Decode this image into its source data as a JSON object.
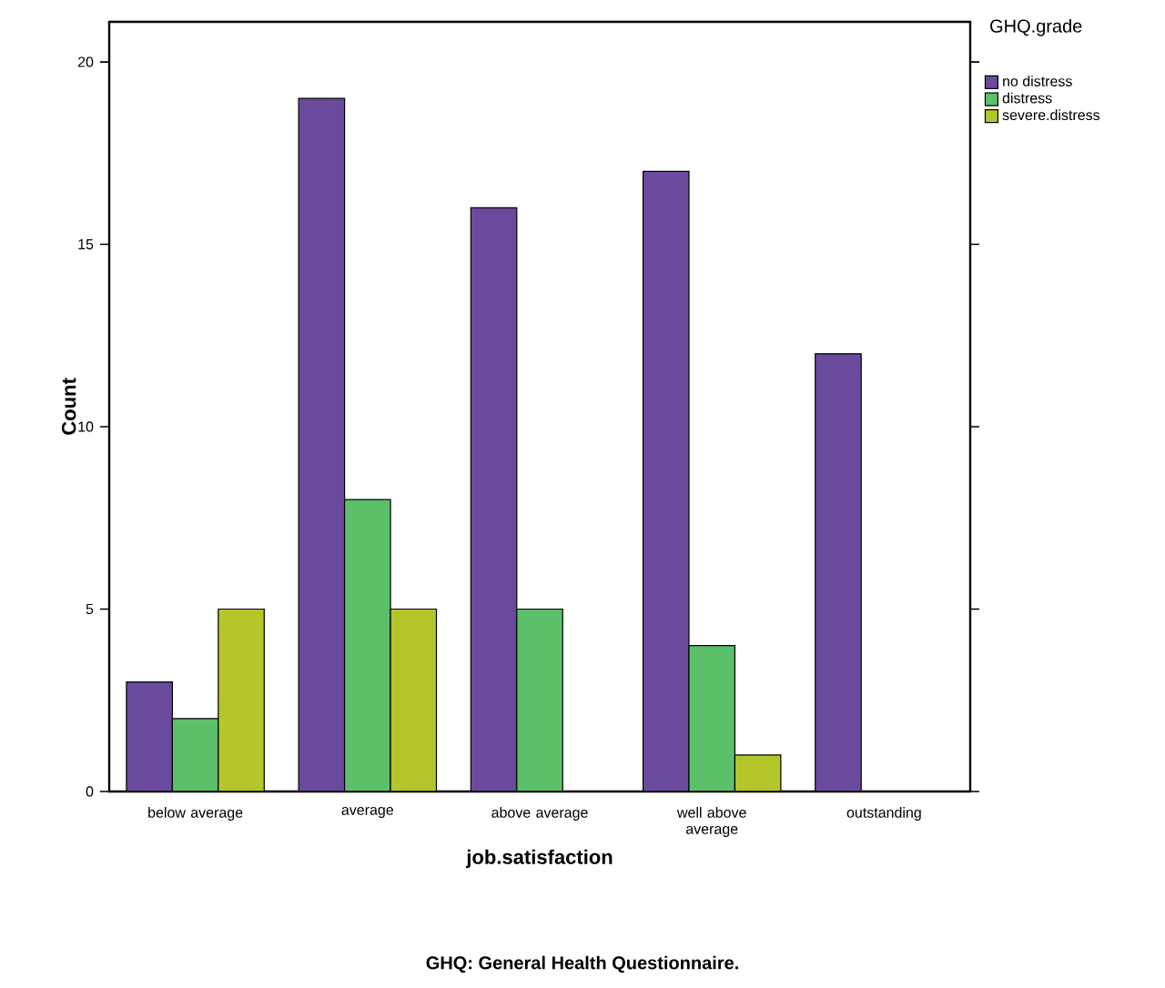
{
  "chart_data": {
    "type": "bar",
    "xlabel": "job.satisfaction",
    "ylabel": "Count",
    "legend_title": "GHQ.grade",
    "categories": [
      "below average",
      "average",
      "above average",
      "well above average",
      "outstanding"
    ],
    "series": [
      {
        "name": "no distress",
        "color": "#6a4a9c",
        "values": [
          3,
          19,
          16,
          17,
          12
        ]
      },
      {
        "name": "distress",
        "color": "#5cbf6a",
        "values": [
          2,
          8,
          5,
          4,
          null
        ]
      },
      {
        "name": "severe.distress",
        "color": "#b5c62b",
        "values": [
          5,
          5,
          null,
          1,
          null
        ]
      }
    ],
    "ylim": [
      0,
      21.1
    ],
    "yticks": [
      0,
      5,
      10,
      15,
      20
    ],
    "legend": "top right",
    "grid": false,
    "annotations": [
      "GHQ: General Health Questionnaire."
    ]
  }
}
